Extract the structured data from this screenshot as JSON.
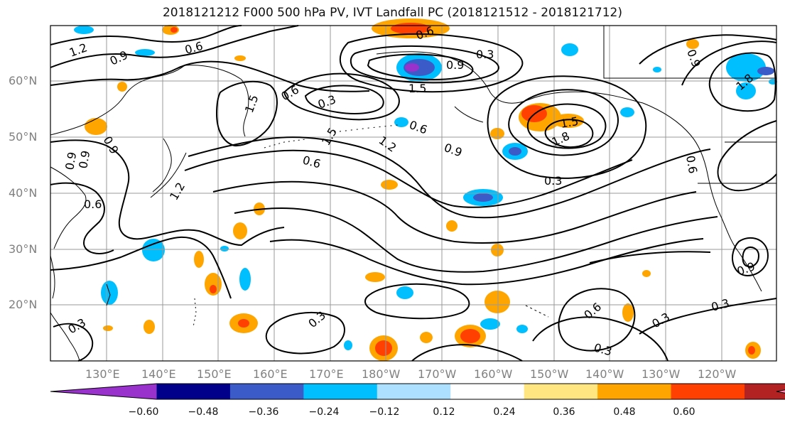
{
  "title": "2018121212 F000 500 hPa PV, IVT Landfall PC (2018121512 - 2018121712)",
  "lat_labels": [
    "60°N",
    "50°N",
    "40°N",
    "30°N",
    "20°N"
  ],
  "lon_labels": [
    "130°E",
    "140°E",
    "150°E",
    "160°E",
    "170°E",
    "180°W",
    "170°W",
    "160°W",
    "150°W",
    "140°W",
    "130°W",
    "120°W"
  ],
  "colorbar": {
    "ticks": [
      "−0.60",
      "−0.48",
      "−0.36",
      "−0.24",
      "−0.12",
      "0.12",
      "0.24",
      "0.36",
      "0.48",
      "0.60"
    ],
    "colors": [
      "#9932CC",
      "#00008B",
      "#3A5BC8",
      "#00BFFF",
      "#ADDFFF",
      "#FFFFFF",
      "#FFE680",
      "#FFA500",
      "#FF4000",
      "#B22222",
      "#FF85B0"
    ]
  },
  "contour_labels": [
    "1.2",
    "0.9",
    "0.6",
    "0.6",
    "0.3",
    "0.9",
    "1.5",
    "0.6",
    "0.3",
    "1.5",
    "1.2",
    "0.6",
    "0.9",
    "1.5",
    "1.8",
    "0.3",
    "0.9",
    "0.9",
    "1.5",
    "0.6",
    "1.2",
    "0.9",
    "0.6",
    "0.3",
    "0.6",
    "0.3",
    "0.3",
    "0.9",
    "0.3",
    "0.3",
    "0.9",
    "0.6",
    "1.8"
  ],
  "colors": {
    "contour": "#000000",
    "grid": "#999999",
    "coast": "#000000"
  }
}
